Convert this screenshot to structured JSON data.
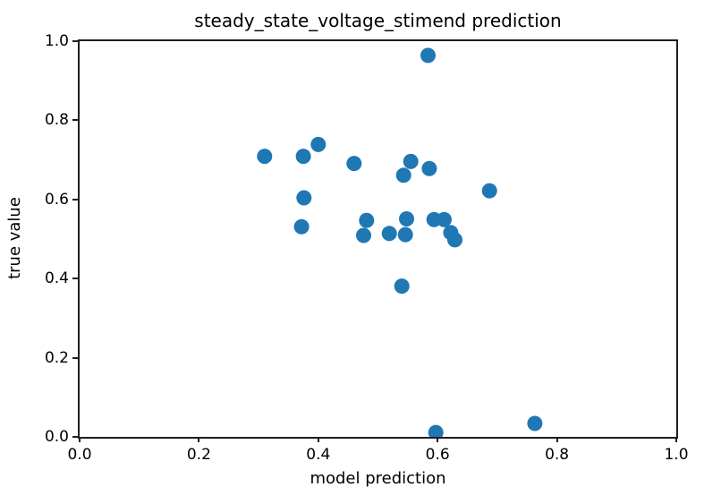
{
  "chart_data": {
    "type": "scatter",
    "title": "steady_state_voltage_stimend prediction",
    "xlabel": "model prediction",
    "ylabel": "true value",
    "xlim": [
      0.0,
      1.0
    ],
    "ylim": [
      0.0,
      1.0
    ],
    "xticks": [
      "0.0",
      "0.2",
      "0.4",
      "0.6",
      "0.8",
      "1.0"
    ],
    "yticks": [
      "0.0",
      "0.2",
      "0.4",
      "0.6",
      "0.8",
      "1.0"
    ],
    "grid": false,
    "legend": false,
    "marker_color": "#1f77b4",
    "marker_radius_px": 8.5,
    "num_points": 23,
    "points": [
      [
        0.31,
        0.709
      ],
      [
        0.375,
        0.709
      ],
      [
        0.4,
        0.739
      ],
      [
        0.46,
        0.691
      ],
      [
        0.376,
        0.604
      ],
      [
        0.372,
        0.531
      ],
      [
        0.481,
        0.547
      ],
      [
        0.476,
        0.509
      ],
      [
        0.519,
        0.514
      ],
      [
        0.546,
        0.511
      ],
      [
        0.548,
        0.551
      ],
      [
        0.543,
        0.661
      ],
      [
        0.555,
        0.696
      ],
      [
        0.586,
        0.678
      ],
      [
        0.594,
        0.549
      ],
      [
        0.611,
        0.549
      ],
      [
        0.622,
        0.516
      ],
      [
        0.629,
        0.498
      ],
      [
        0.687,
        0.622
      ],
      [
        0.584,
        0.964
      ],
      [
        0.54,
        0.381
      ],
      [
        0.597,
        0.011
      ],
      [
        0.763,
        0.034
      ]
    ]
  }
}
